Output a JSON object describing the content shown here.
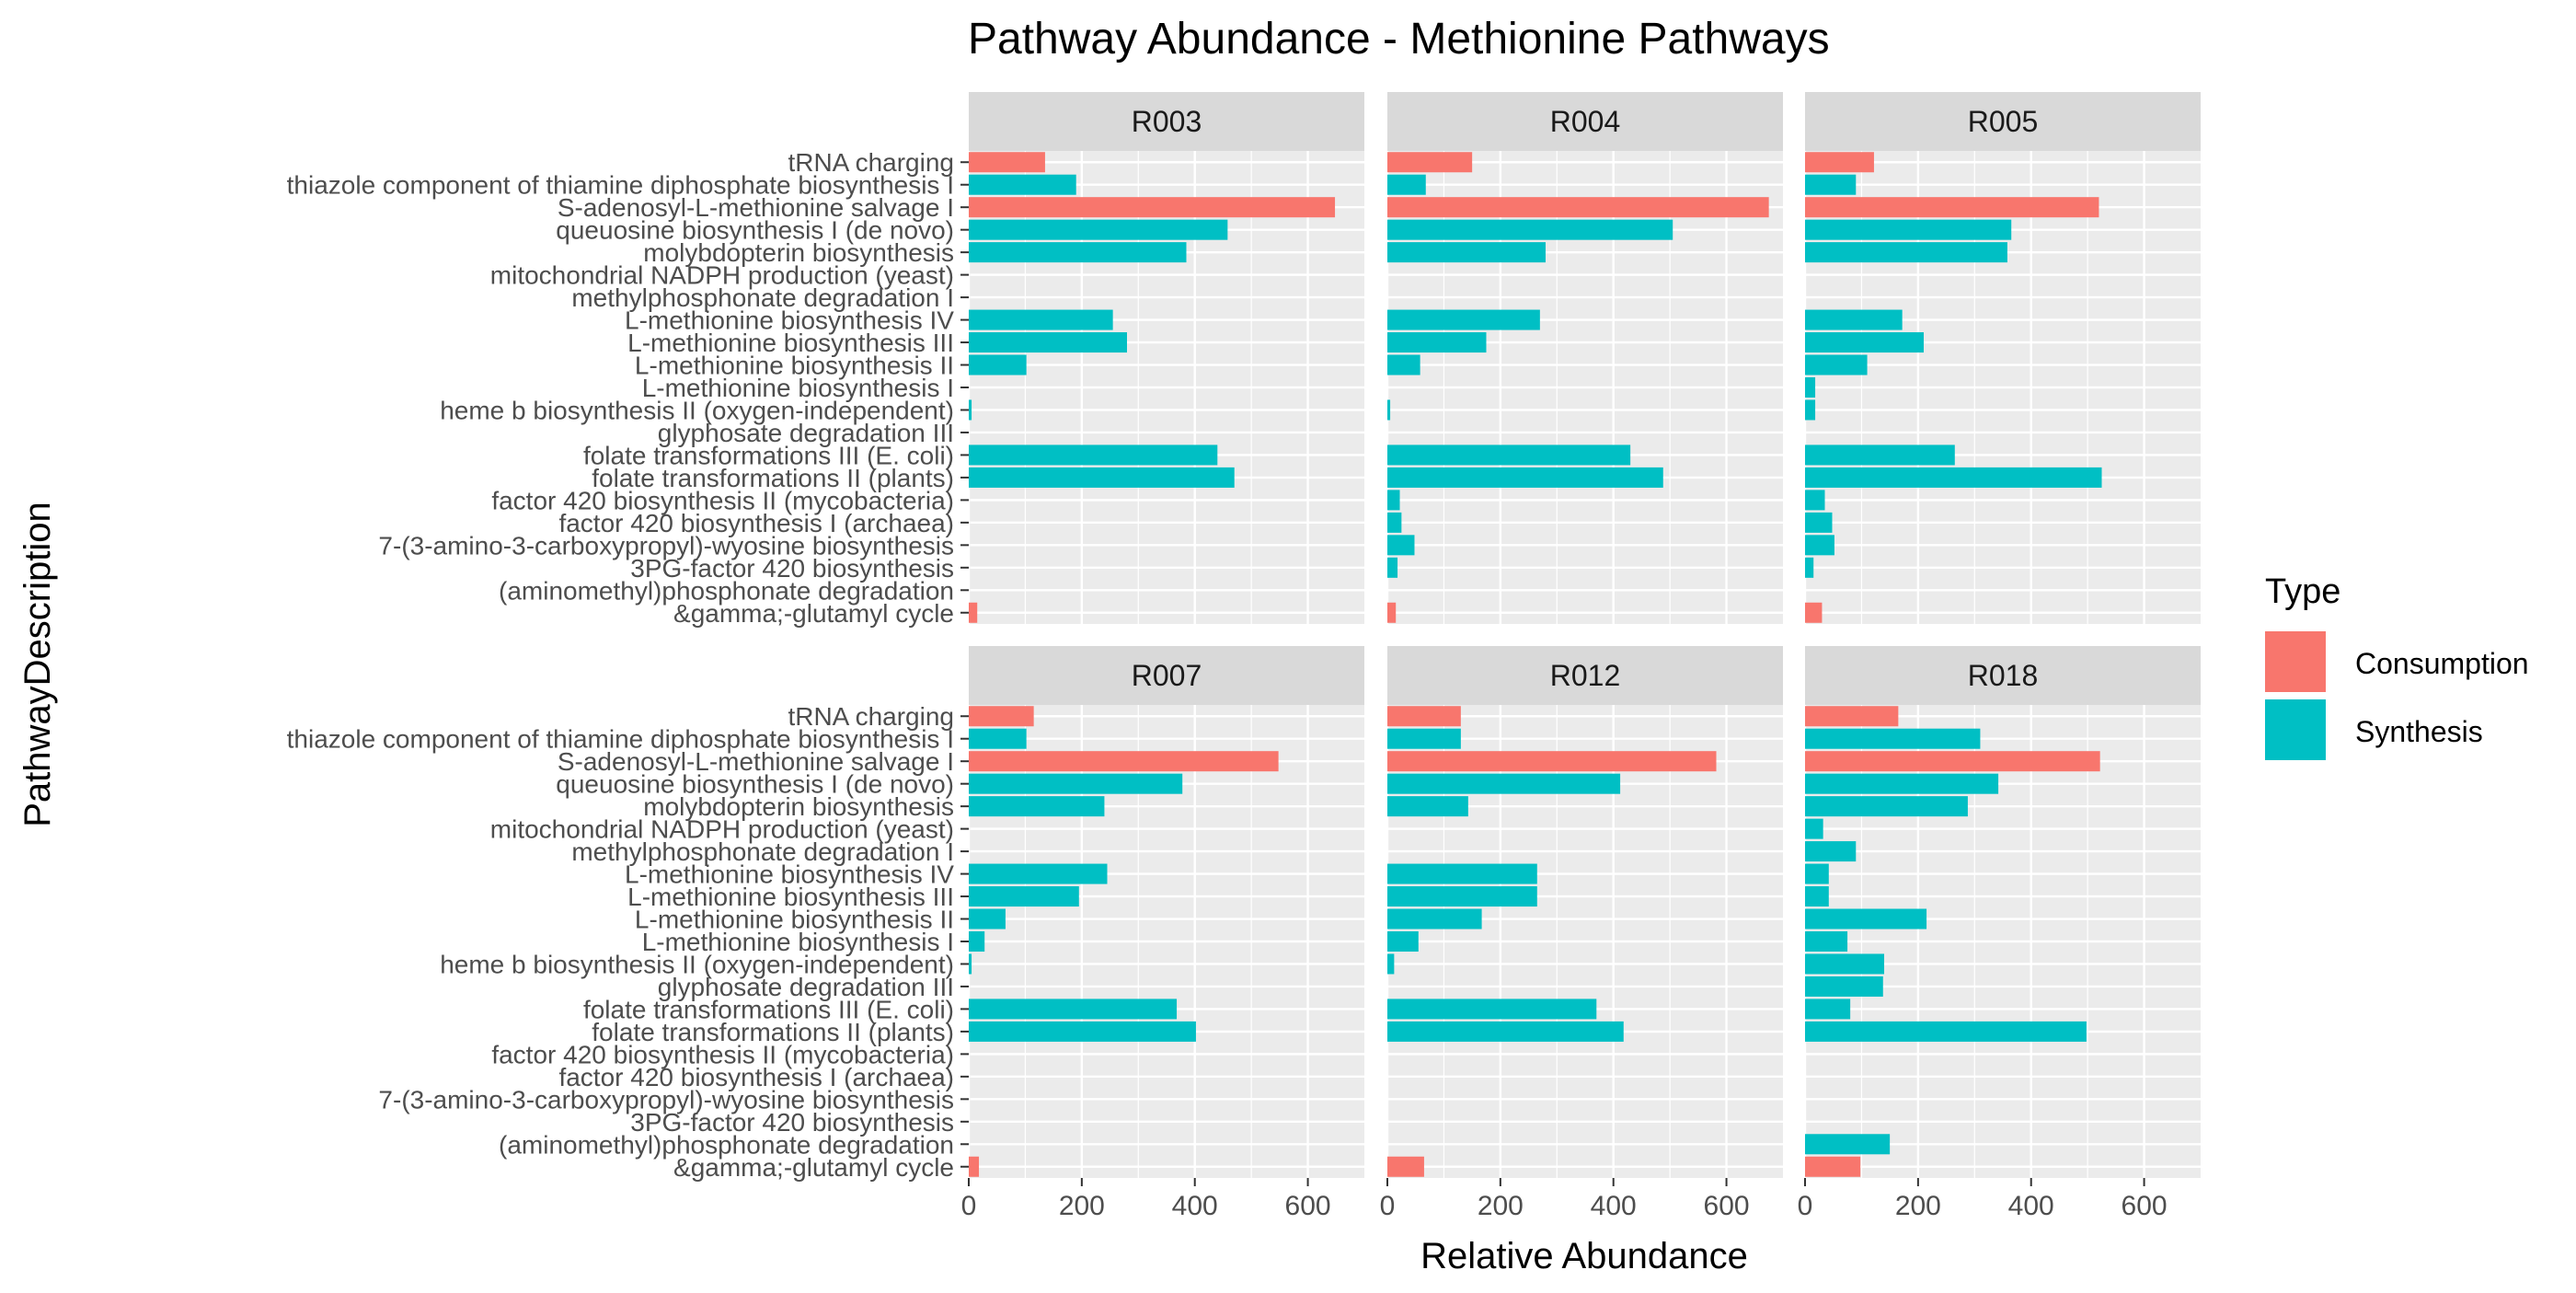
{
  "chart_data": {
    "type": "bar",
    "orientation": "horizontal",
    "title": "Pathway Abundance - Methionine Pathways",
    "xlabel": "Relative Abundance",
    "ylabel": "PathwayDescription",
    "xlim": [
      0,
      700
    ],
    "xticks": [
      0,
      200,
      400,
      600
    ],
    "grid": true,
    "legend": {
      "title": "Type",
      "position": "right",
      "entries": [
        {
          "name": "Consumption",
          "color": "#F8766D"
        },
        {
          "name": "Synthesis",
          "color": "#00BFC4"
        }
      ]
    },
    "categories": [
      "tRNA charging",
      "thiazole component of thiamine diphosphate biosynthesis I",
      "S-adenosyl-L-methionine salvage I",
      "queuosine biosynthesis I (de novo)",
      "molybdopterin biosynthesis",
      "mitochondrial NADPH production (yeast)",
      "methylphosphonate degradation I",
      "L-methionine biosynthesis IV",
      "L-methionine biosynthesis III",
      "L-methionine biosynthesis II",
      "L-methionine biosynthesis I",
      "heme b biosynthesis II (oxygen-independent)",
      "glyphosate degradation III",
      "folate transformations III (E. coli)",
      "folate transformations II (plants)",
      "factor 420 biosynthesis II (mycobacteria)",
      "factor 420 biosynthesis I (archaea)",
      "7-(3-amino-3-carboxypropyl)-wyosine biosynthesis",
      "3PG-factor 420 biosynthesis",
      "(aminomethyl)phosphonate degradation",
      "&gamma;-glutamyl cycle"
    ],
    "category_types": [
      "Consumption",
      "Synthesis",
      "Consumption",
      "Synthesis",
      "Synthesis",
      "Synthesis",
      "Synthesis",
      "Synthesis",
      "Synthesis",
      "Synthesis",
      "Synthesis",
      "Synthesis",
      "Synthesis",
      "Synthesis",
      "Synthesis",
      "Synthesis",
      "Synthesis",
      "Synthesis",
      "Synthesis",
      "Synthesis",
      "Consumption"
    ],
    "panels": [
      {
        "name": "R003",
        "values": [
          135,
          190,
          648,
          458,
          385,
          0,
          0,
          255,
          280,
          102,
          0,
          5,
          0,
          440,
          470,
          0,
          0,
          0,
          0,
          0,
          15
        ]
      },
      {
        "name": "R004",
        "values": [
          150,
          68,
          675,
          505,
          280,
          0,
          0,
          270,
          175,
          58,
          0,
          5,
          0,
          430,
          488,
          22,
          25,
          48,
          18,
          0,
          15
        ]
      },
      {
        "name": "R005",
        "values": [
          122,
          90,
          520,
          365,
          358,
          0,
          0,
          172,
          210,
          110,
          18,
          18,
          0,
          265,
          525,
          35,
          48,
          52,
          15,
          0,
          30
        ]
      },
      {
        "name": "R007",
        "values": [
          115,
          102,
          548,
          378,
          240,
          0,
          0,
          245,
          195,
          65,
          28,
          5,
          0,
          368,
          402,
          0,
          0,
          0,
          0,
          0,
          18
        ]
      },
      {
        "name": "R012",
        "values": [
          130,
          130,
          582,
          412,
          143,
          0,
          0,
          265,
          265,
          167,
          55,
          12,
          0,
          370,
          418,
          0,
          0,
          0,
          0,
          0,
          65
        ]
      },
      {
        "name": "R018",
        "values": [
          165,
          310,
          522,
          342,
          288,
          32,
          90,
          42,
          42,
          215,
          75,
          140,
          138,
          80,
          498,
          0,
          0,
          0,
          0,
          150,
          98
        ]
      }
    ]
  }
}
